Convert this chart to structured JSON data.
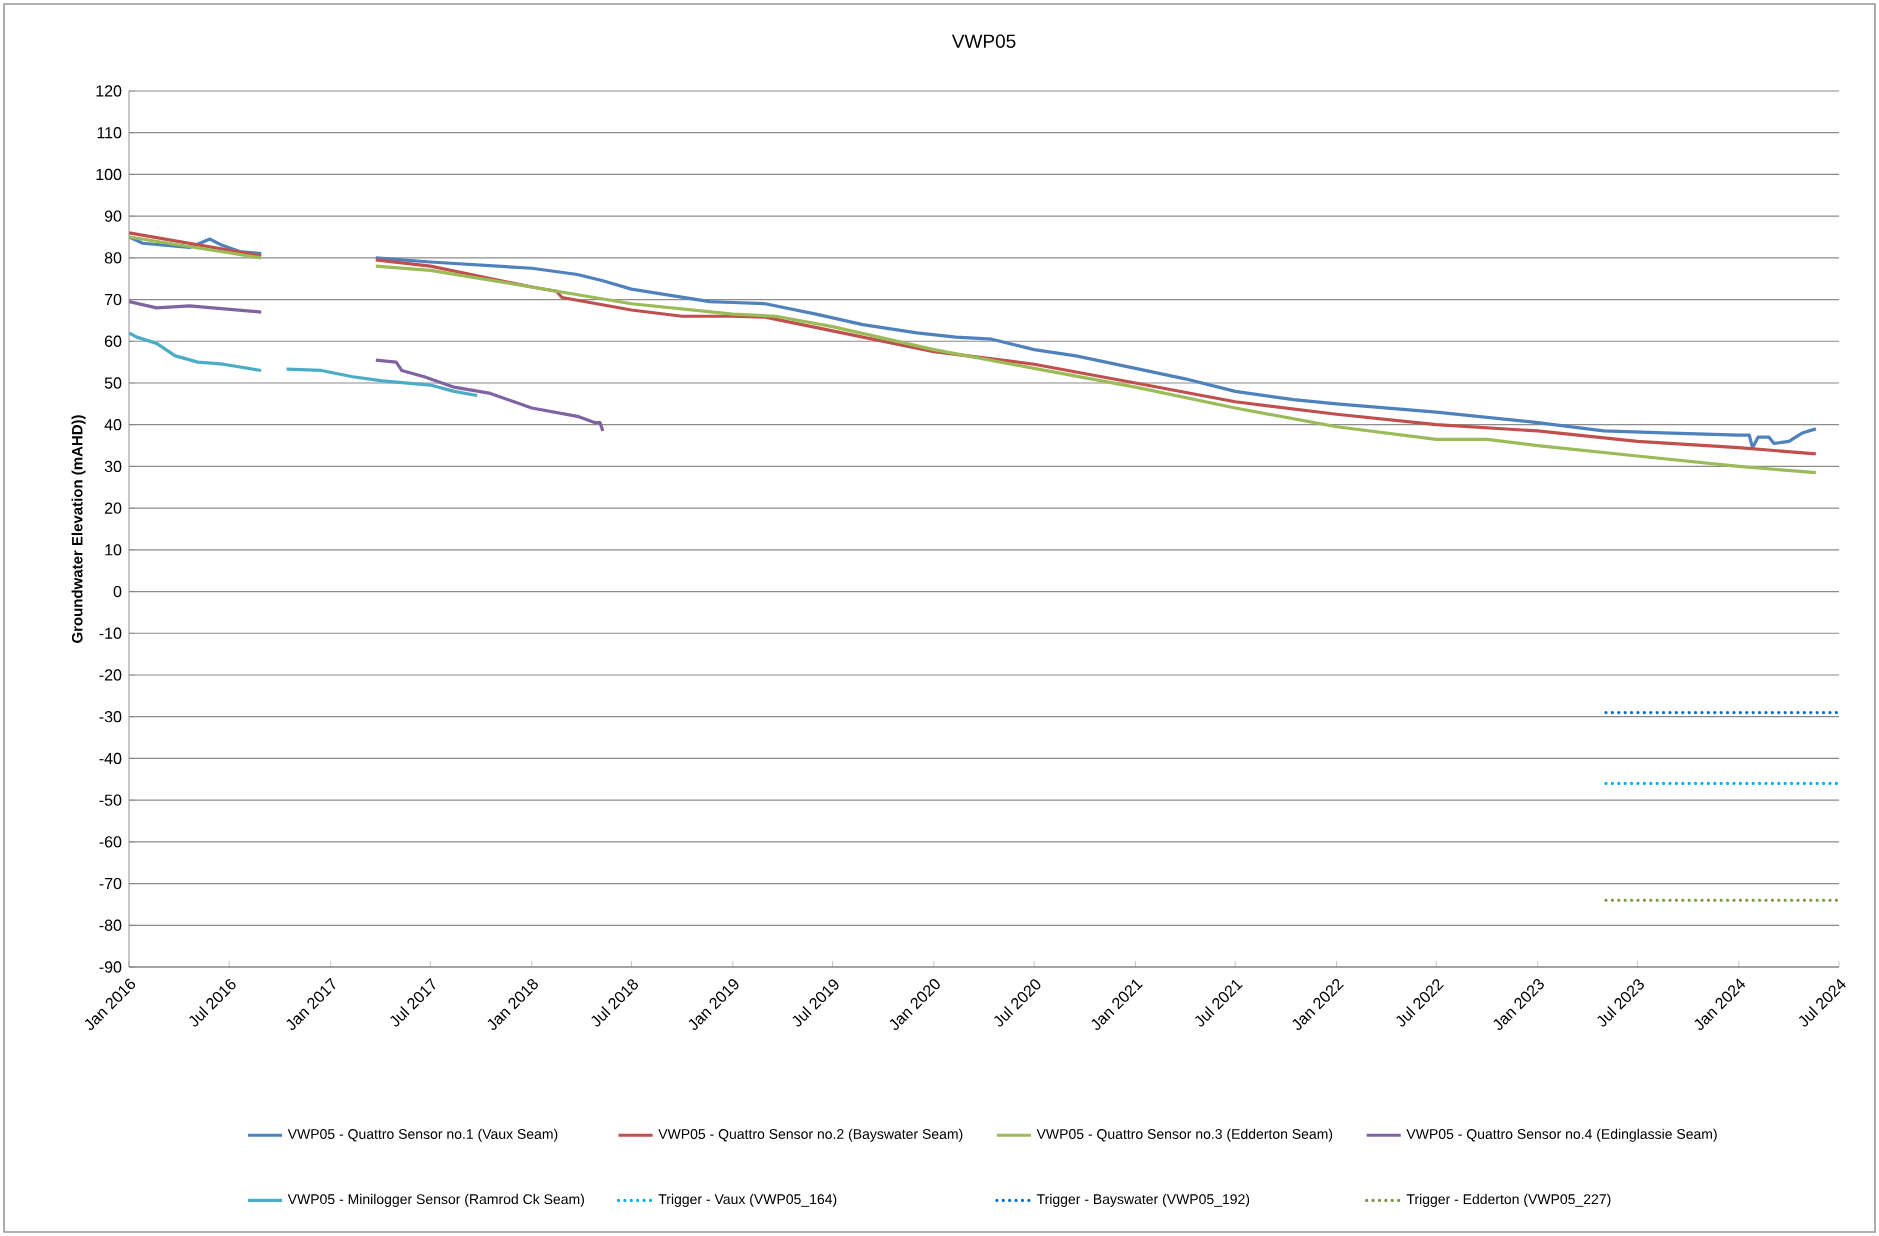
{
  "chart_data": {
    "type": "line",
    "title": "VWP05",
    "ylabel": "Groundwater Elevation (mAHD))",
    "xlim": [
      "2016-01-01",
      "2024-07-01"
    ],
    "xticks": [
      {
        "value": "2016-01-01",
        "label": "Jan 2016"
      },
      {
        "value": "2016-07-01",
        "label": "Jul 2016"
      },
      {
        "value": "2017-01-01",
        "label": "Jan 2017"
      },
      {
        "value": "2017-07-01",
        "label": "Jul 2017"
      },
      {
        "value": "2018-01-01",
        "label": "Jan 2018"
      },
      {
        "value": "2018-07-01",
        "label": "Jul 2018"
      },
      {
        "value": "2019-01-01",
        "label": "Jan 2019"
      },
      {
        "value": "2019-07-01",
        "label": "Jul 2019"
      },
      {
        "value": "2020-01-01",
        "label": "Jan 2020"
      },
      {
        "value": "2020-07-01",
        "label": "Jul 2020"
      },
      {
        "value": "2021-01-01",
        "label": "Jan 2021"
      },
      {
        "value": "2021-07-01",
        "label": "Jul 2021"
      },
      {
        "value": "2022-01-01",
        "label": "Jan 2022"
      },
      {
        "value": "2022-07-01",
        "label": "Jul 2022"
      },
      {
        "value": "2023-01-01",
        "label": "Jan 2023"
      },
      {
        "value": "2023-07-01",
        "label": "Jul 2023"
      },
      {
        "value": "2024-01-01",
        "label": "Jan 2024"
      },
      {
        "value": "2024-07-01",
        "label": "Jul 2024"
      }
    ],
    "ylim": [
      -90,
      120
    ],
    "yticks": [
      -90,
      -80,
      -70,
      -60,
      -50,
      -40,
      -30,
      -20,
      -10,
      0,
      10,
      20,
      30,
      40,
      50,
      60,
      70,
      80,
      90,
      100,
      110,
      120
    ],
    "grid": "y",
    "legend": "bottom",
    "marker": "none",
    "series": [
      {
        "name": "VWP05 - Quattro Sensor no.1 (Vaux Seam)",
        "color": "#4f81bd",
        "line_style": "solid",
        "x": [
          "2016-01-01",
          "2016-01-26",
          "2016-04-20",
          "2016-05-27",
          "2016-06-18",
          "2016-07-20",
          "2016-08-28",
          "2016-12-01",
          "2017-03-24",
          "2017-07-01",
          "2018-01-01",
          "2018-03-25",
          "2018-05-10",
          "2018-07-01",
          "2018-09-10",
          "2018-11-20",
          "2019-01-01",
          "2019-03-01",
          "2019-06-01",
          "2019-08-25",
          "2019-12-01",
          "2020-02-10",
          "2020-04-15",
          "2020-07-01",
          "2020-09-15",
          "2021-01-01",
          "2021-04-01",
          "2021-07-01",
          "2021-10-15",
          "2022-01-01",
          "2022-07-01",
          "2023-01-01",
          "2023-05-01",
          "2023-09-01",
          "2024-01-01",
          "2024-01-20",
          "2024-01-26",
          "2024-02-05",
          "2024-02-25",
          "2024-03-05",
          "2024-04-01",
          "2024-04-25",
          "2024-05-20"
        ],
        "values": [
          85,
          83.5,
          82.5,
          84.5,
          83,
          81.5,
          81,
          null,
          80,
          79,
          77.5,
          76,
          74.5,
          72.5,
          71,
          69.5,
          69.3,
          69,
          66.5,
          64,
          62,
          61,
          60.5,
          58,
          56.5,
          53.5,
          51,
          48,
          46,
          45,
          43,
          40.5,
          38.5,
          38,
          37.5,
          37.5,
          34.5,
          37,
          37,
          35.5,
          36,
          38,
          39
        ]
      },
      {
        "name": "VWP05 - Quattro Sensor no.2 (Bayswater Seam)",
        "color": "#c0504d",
        "line_style": "solid",
        "x": [
          "2016-01-01",
          "2016-08-28",
          "2016-12-01",
          "2017-03-24",
          "2017-07-01",
          "2017-10-20",
          "2018-01-01",
          "2018-02-15",
          "2018-02-25",
          "2018-07-01",
          "2018-10-01",
          "2019-01-01",
          "2019-03-01",
          "2019-07-01",
          "2020-01-01",
          "2020-07-01",
          "2021-01-01",
          "2021-07-01",
          "2022-01-01",
          "2022-07-01",
          "2023-01-01",
          "2023-07-01",
          "2024-01-01",
          "2024-05-20"
        ],
        "values": [
          86,
          80.5,
          null,
          79.5,
          78,
          75,
          73,
          72,
          70.5,
          67.5,
          66,
          66,
          65.8,
          62.5,
          57.5,
          54.5,
          50,
          45.5,
          42.5,
          40,
          38.5,
          36,
          34.5,
          33
        ]
      },
      {
        "name": "VWP05 - Quattro Sensor no.3 (Edderton Seam)",
        "color": "#9bbb59",
        "line_style": "solid",
        "x": [
          "2016-01-01",
          "2016-08-28",
          "2016-12-01",
          "2017-03-24",
          "2017-07-01",
          "2018-01-01",
          "2018-07-01",
          "2019-01-01",
          "2019-03-20",
          "2019-07-01",
          "2020-01-01",
          "2020-07-01",
          "2021-01-01",
          "2021-07-01",
          "2022-01-01",
          "2022-07-01",
          "2022-10-01",
          "2023-01-01",
          "2023-07-01",
          "2024-01-01",
          "2024-05-20"
        ],
        "values": [
          85,
          80,
          null,
          78,
          77,
          73,
          69,
          66.5,
          66,
          63.5,
          58,
          53.5,
          49,
          44,
          39.5,
          36.5,
          36.5,
          35,
          32.5,
          30,
          28.5
        ]
      },
      {
        "name": "VWP05 - Quattro Sensor no.4 (Edinglassie Seam)",
        "color": "#8064a2",
        "line_style": "solid",
        "x": [
          "2016-01-01",
          "2016-02-20",
          "2016-04-20",
          "2016-08-28",
          "2016-12-01",
          "2017-03-24",
          "2017-04-30",
          "2017-05-10",
          "2017-06-20",
          "2017-08-13",
          "2017-10-18",
          "2018-01-01",
          "2018-03-25",
          "2018-04-25",
          "2018-05-05",
          "2018-05-10"
        ],
        "values": [
          69.5,
          68,
          68.5,
          67,
          null,
          55.5,
          55,
          53,
          51.5,
          49,
          47.5,
          44,
          42,
          40.5,
          40.5,
          38.5
        ]
      },
      {
        "name": "VWP05 - Minilogger Sensor (Ramrod Ck Seam)",
        "color": "#4bacc6",
        "line_style": "solid",
        "x": [
          "2016-01-01",
          "2016-01-15",
          "2016-02-20",
          "2016-03-25",
          "2016-05-05",
          "2016-06-20",
          "2016-08-28",
          "2016-09-20",
          "2016-10-13",
          "2016-12-15",
          "2017-02-10",
          "2017-04-05",
          "2017-07-01",
          "2017-08-13",
          "2017-09-24"
        ],
        "values": [
          62,
          61,
          59.5,
          56.5,
          55,
          54.5,
          53,
          null,
          53.3,
          53,
          51.5,
          50.5,
          49.5,
          48,
          47
        ]
      },
      {
        "name": "Trigger - Vaux (VWP05_164)",
        "color": "#00b0f0",
        "line_style": "dotted",
        "x": [
          "2023-05-05",
          "2024-07-01"
        ],
        "values": [
          -46,
          -46
        ]
      },
      {
        "name": "Trigger - Bayswater (VWP05_192)",
        "color": "#0070c0",
        "line_style": "dotted",
        "x": [
          "2023-05-05",
          "2024-07-01"
        ],
        "values": [
          -29,
          -29
        ]
      },
      {
        "name": "Trigger - Edderton (VWP05_227)",
        "color": "#77933c",
        "line_style": "dotted",
        "x": [
          "2023-05-05",
          "2024-07-01"
        ],
        "values": [
          -74,
          -74
        ]
      }
    ]
  }
}
